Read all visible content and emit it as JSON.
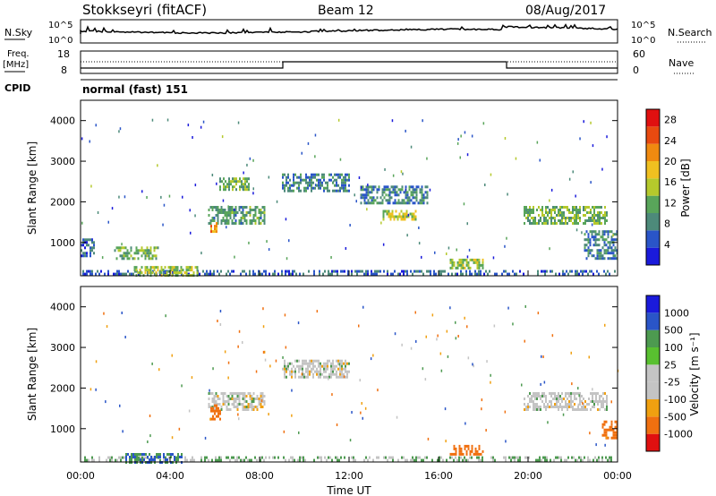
{
  "header": {
    "station": "Stokkseyri (fitACF)",
    "beam": "Beam 12",
    "date": "08/Aug/2017"
  },
  "noise_panel": {
    "left_label": "N.Sky",
    "right_label": "N.Search",
    "left_top_tick": "10^5",
    "left_bottom_tick": "10^0",
    "right_top_tick": "10^5",
    "right_bottom_tick": "10^0"
  },
  "freq_panel": {
    "left_label_1": "Freq.",
    "left_label_2": "[MHz]",
    "left_top_tick": "18",
    "left_bottom_tick": "8",
    "right_label": "Nave",
    "right_top_tick": "60",
    "right_bottom_tick": "0",
    "cpid_label": "CPID",
    "cpid_value": "normal (fast) 151"
  },
  "colors": {
    "power": [
      "#1a1adb",
      "#2a55c8",
      "#4d8a7a",
      "#59a55a",
      "#b5c92c",
      "#f0c020",
      "#f08a10",
      "#e84a10",
      "#e01010"
    ],
    "velocity": [
      "#1a1adb",
      "#2a55c8",
      "#4d8a7a",
      "#59c030",
      "#c0c0c0",
      "#c0c0c0",
      "#f09010",
      "#f06010",
      "#e01010"
    ]
  },
  "chart_data": [
    {
      "type": "heatmap",
      "title": "Power",
      "ylabel": "Slant Range [km]",
      "xlabel": "",
      "xlim": [
        "00:00",
        "24:00"
      ],
      "ylim": [
        180,
        4500
      ],
      "y_ticks": [
        "1000",
        "2000",
        "3000",
        "4000"
      ],
      "x_ticks": [
        "00:00",
        "04:00",
        "08:00",
        "12:00",
        "16:00",
        "20:00",
        "00:00"
      ],
      "colorbar": {
        "label": "Power [dB]",
        "ticks": [
          "4",
          "8",
          "12",
          "16",
          "20",
          "24",
          "28"
        ],
        "range": [
          0,
          30
        ]
      },
      "regions": [
        {
          "t0": 0.0,
          "t1": 24.0,
          "r0": 200,
          "r1": 320,
          "value": 6
        },
        {
          "t0": 2.3,
          "t1": 5.2,
          "r0": 180,
          "r1": 420,
          "value": 14
        },
        {
          "t0": 1.5,
          "t1": 3.5,
          "r0": 600,
          "r1": 900,
          "value": 12
        },
        {
          "t0": 5.7,
          "t1": 8.2,
          "r0": 1500,
          "r1": 1900,
          "value": 10
        },
        {
          "t0": 5.8,
          "t1": 6.1,
          "r0": 1250,
          "r1": 1500,
          "value": 22
        },
        {
          "t0": 6.2,
          "t1": 7.5,
          "r0": 2300,
          "r1": 2600,
          "value": 12
        },
        {
          "t0": 9.0,
          "t1": 12.0,
          "r0": 2300,
          "r1": 2700,
          "value": 8
        },
        {
          "t0": 12.5,
          "t1": 15.5,
          "r0": 2000,
          "r1": 2400,
          "value": 8
        },
        {
          "t0": 13.5,
          "t1": 15.0,
          "r0": 1600,
          "r1": 1800,
          "value": 16
        },
        {
          "t0": 16.5,
          "t1": 18.0,
          "r0": 400,
          "r1": 600,
          "value": 14
        },
        {
          "t0": 19.8,
          "t1": 23.5,
          "r0": 1500,
          "r1": 1900,
          "value": 12
        },
        {
          "t0": 0.0,
          "t1": 0.6,
          "r0": 700,
          "r1": 1100,
          "value": 6
        },
        {
          "t0": 22.5,
          "t1": 24.0,
          "r0": 600,
          "r1": 1300,
          "value": 8
        }
      ]
    },
    {
      "type": "heatmap",
      "title": "Velocity",
      "ylabel": "Slant Range [km]",
      "xlabel": "Time UT",
      "xlim": [
        "00:00",
        "24:00"
      ],
      "ylim": [
        180,
        4500
      ],
      "y_ticks": [
        "1000",
        "2000",
        "3000",
        "4000"
      ],
      "x_ticks": [
        "00:00",
        "04:00",
        "08:00",
        "12:00",
        "16:00",
        "20:00",
        "00:00"
      ],
      "colorbar": {
        "label": "Velocity [m s⁻¹]",
        "ticks": [
          "1000",
          "500",
          "100",
          "25",
          "-25",
          "-100",
          "-500",
          "-1000"
        ]
      },
      "regions": [
        {
          "t0": 0.0,
          "t1": 24.0,
          "r0": 200,
          "r1": 320,
          "value": 25
        },
        {
          "t0": 2.0,
          "t1": 4.5,
          "r0": 200,
          "r1": 400,
          "value": 100
        },
        {
          "t0": 5.7,
          "t1": 8.2,
          "r0": 1500,
          "r1": 1900,
          "value": 0
        },
        {
          "t0": 5.8,
          "t1": 6.2,
          "r0": 1250,
          "r1": 1600,
          "value": -200
        },
        {
          "t0": 16.5,
          "t1": 18.0,
          "r0": 400,
          "r1": 600,
          "value": -300
        },
        {
          "t0": 9.0,
          "t1": 12.0,
          "r0": 2300,
          "r1": 2700,
          "value": 0
        },
        {
          "t0": 19.8,
          "t1": 23.5,
          "r0": 1500,
          "r1": 1900,
          "value": 0
        },
        {
          "t0": 23.3,
          "t1": 24.0,
          "r0": 800,
          "r1": 1200,
          "value": -300
        }
      ]
    }
  ]
}
